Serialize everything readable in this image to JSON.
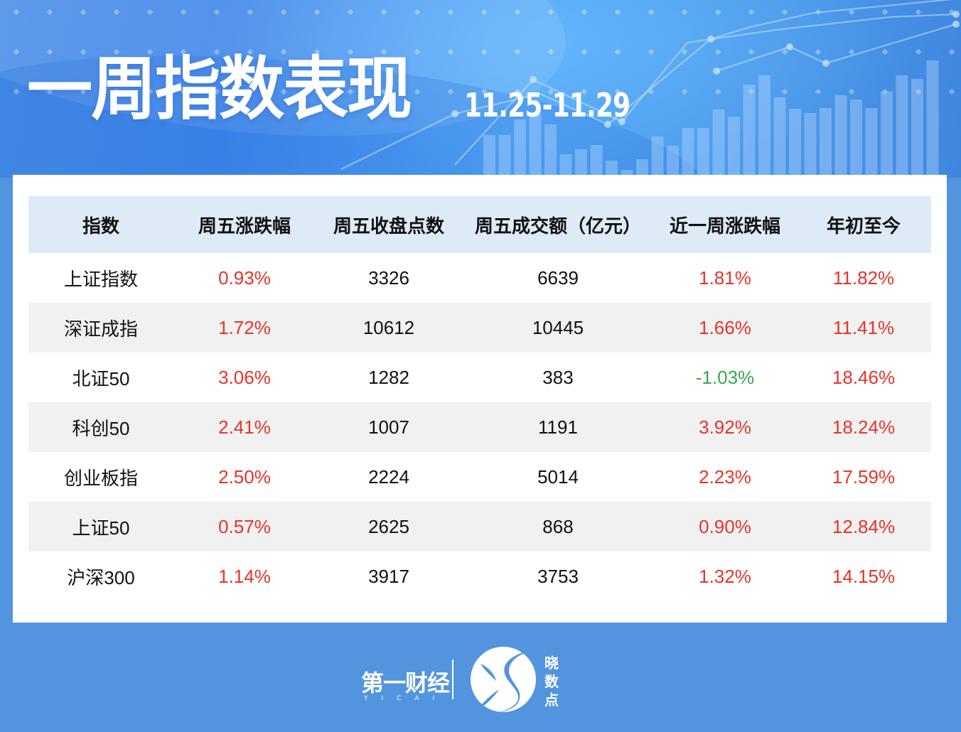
{
  "banner": {
    "title": "一周指数表现",
    "date_range": "11.25-11.29"
  },
  "colors": {
    "background": "#5294de",
    "header_band": "#deeaf6",
    "stripe": "#f1f1f1",
    "positive": "#e8332a",
    "negative": "#3aa651",
    "text": "#111111"
  },
  "table": {
    "columns": [
      "指数",
      "周五涨跌幅",
      "周五收盘点数",
      "周五成交额（亿元）",
      "近一周涨跌幅",
      "年初至今"
    ],
    "rows": [
      [
        "上证指数",
        "0.93%",
        "3326",
        "6639",
        "1.81%",
        "11.82%"
      ],
      [
        "深证成指",
        "1.72%",
        "10612",
        "10445",
        "1.66%",
        "11.41%"
      ],
      [
        "北证50",
        "3.06%",
        "1282",
        "383",
        "-1.03%",
        "18.46%"
      ],
      [
        "科创50",
        "2.41%",
        "1007",
        "1191",
        "3.92%",
        "18.24%"
      ],
      [
        "创业板指",
        "2.50%",
        "2224",
        "5014",
        "2.23%",
        "17.59%"
      ],
      [
        "上证50",
        "0.57%",
        "2625",
        "868",
        "0.90%",
        "12.84%"
      ],
      [
        "沪深300",
        "1.14%",
        "3917",
        "3753",
        "1.32%",
        "14.15%"
      ]
    ]
  },
  "footer": {
    "brand_main": "第一财经",
    "brand_sub": "YICAI",
    "brand2": "晓数点",
    "brand2_icon": "xiaoshudian-logo-icon"
  },
  "chart_data": {
    "type": "table",
    "title": "一周指数表现 11.25-11.29",
    "columns": [
      "指数",
      "周五涨跌幅",
      "周五收盘点数",
      "周五成交额（亿元）",
      "近一周涨跌幅",
      "年初至今"
    ],
    "rows": [
      {
        "index": "上证指数",
        "fri_change_pct": 0.93,
        "fri_close": 3326,
        "fri_turnover_100m_yuan": 6639,
        "week_change_pct": 1.81,
        "ytd_pct": 11.82
      },
      {
        "index": "深证成指",
        "fri_change_pct": 1.72,
        "fri_close": 10612,
        "fri_turnover_100m_yuan": 10445,
        "week_change_pct": 1.66,
        "ytd_pct": 11.41
      },
      {
        "index": "北证50",
        "fri_change_pct": 3.06,
        "fri_close": 1282,
        "fri_turnover_100m_yuan": 383,
        "week_change_pct": -1.03,
        "ytd_pct": 18.46
      },
      {
        "index": "科创50",
        "fri_change_pct": 2.41,
        "fri_close": 1007,
        "fri_turnover_100m_yuan": 1191,
        "week_change_pct": 3.92,
        "ytd_pct": 18.24
      },
      {
        "index": "创业板指",
        "fri_change_pct": 2.5,
        "fri_close": 2224,
        "fri_turnover_100m_yuan": 5014,
        "week_change_pct": 2.23,
        "ytd_pct": 17.59
      },
      {
        "index": "上证50",
        "fri_change_pct": 0.57,
        "fri_close": 2625,
        "fri_turnover_100m_yuan": 868,
        "week_change_pct": 0.9,
        "ytd_pct": 12.84
      },
      {
        "index": "沪深300",
        "fri_change_pct": 1.14,
        "fri_close": 3917,
        "fri_turnover_100m_yuan": 3753,
        "week_change_pct": 1.32,
        "ytd_pct": 14.15
      }
    ]
  }
}
